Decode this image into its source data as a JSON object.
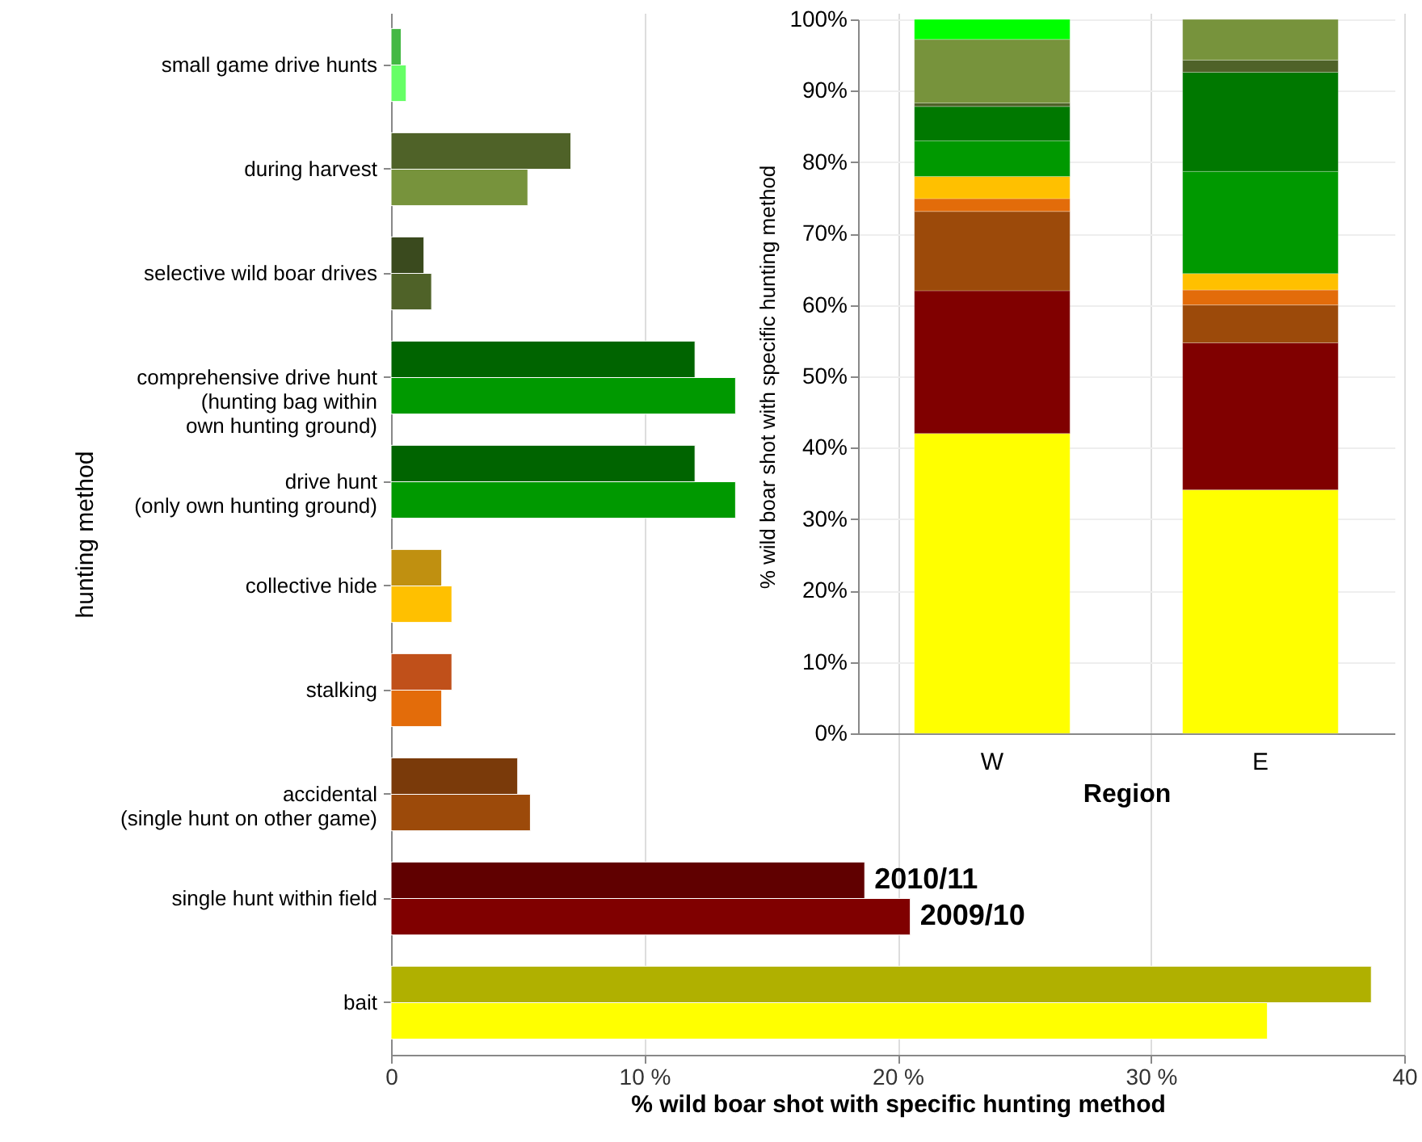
{
  "chart_data": [
    {
      "type": "bar",
      "orientation": "horizontal",
      "xlabel": "% wild boar shot with specific hunting method",
      "ylabel": "hunting method",
      "categories": [
        "small game drive hunts",
        "during harvest",
        "selective wild boar drives",
        "comprehensive drive hunt\n(hunting bag within\nown hunting ground)",
        "drive hunt\n(only own hunting ground)",
        "collective hide",
        "stalking",
        "accidental\n(single hunt on other game)",
        "single hunt within field",
        "bait"
      ],
      "series": [
        {
          "name": "2010/11",
          "colors": [
            "#44b844",
            "#4f6228",
            "#3a4a1e",
            "#006400",
            "#006400",
            "#c09010",
            "#c0501a",
            "#7a3a0a",
            "#600000",
            "#b0b000"
          ],
          "values": [
            0.4,
            7.1,
            1.3,
            12.0,
            12.0,
            2.0,
            2.4,
            5.0,
            18.7,
            38.7
          ]
        },
        {
          "name": "2009/10",
          "colors": [
            "#66ff66",
            "#77933c",
            "#4f6228",
            "#009900",
            "#009900",
            "#ffc000",
            "#e36c0a",
            "#9c4a0a",
            "#800000",
            "#ffff00"
          ],
          "values": [
            0.6,
            5.4,
            1.6,
            13.6,
            13.6,
            2.4,
            2.0,
            5.5,
            20.5,
            34.6
          ]
        }
      ],
      "xlim": [
        0,
        40
      ],
      "xticks": [
        0,
        {
          "value": 10,
          "label": "10 %"
        },
        {
          "value": 20,
          "label": "20 %"
        },
        {
          "value": 30,
          "label": "30 %"
        },
        40
      ],
      "grid": "x"
    },
    {
      "type": "bar",
      "stacked": true,
      "xlabel": "Region",
      "ylabel": "% wild boar shot with specific hunting method",
      "categories": [
        "W",
        "E"
      ],
      "series": [
        {
          "color": "#ffff00",
          "values": [
            42.0,
            34.1
          ]
        },
        {
          "color": "#800000",
          "values": [
            20.0,
            20.6
          ]
        },
        {
          "color": "#9c4a0a",
          "values": [
            11.1,
            5.3
          ]
        },
        {
          "color": "#e36c0a",
          "values": [
            1.8,
            2.1
          ]
        },
        {
          "color": "#ffc000",
          "values": [
            3.1,
            2.3
          ]
        },
        {
          "color": "#009900",
          "values": [
            5.0,
            14.3
          ]
        },
        {
          "color": "#007800",
          "values": [
            4.8,
            13.9
          ]
        },
        {
          "color": "#4f6228",
          "values": [
            0.5,
            1.7
          ]
        },
        {
          "color": "#77933c",
          "values": [
            8.9,
            5.7
          ]
        },
        {
          "color": "#00ff00",
          "values": [
            2.8,
            null
          ]
        }
      ],
      "ylim": [
        0,
        100
      ],
      "yticks": [
        {
          "value": 0,
          "label": "0%"
        },
        {
          "value": 10,
          "label": "10%"
        },
        {
          "value": 20,
          "label": "20%"
        },
        {
          "value": 30,
          "label": "30%"
        },
        {
          "value": 40,
          "label": "40%"
        },
        {
          "value": 50,
          "label": "50%"
        },
        {
          "value": 60,
          "label": "60%"
        },
        {
          "value": 70,
          "label": "70%"
        },
        {
          "value": 80,
          "label": "80%"
        },
        {
          "value": 90,
          "label": "90%"
        },
        {
          "value": 100,
          "label": "100%"
        }
      ],
      "grid": "y"
    }
  ]
}
